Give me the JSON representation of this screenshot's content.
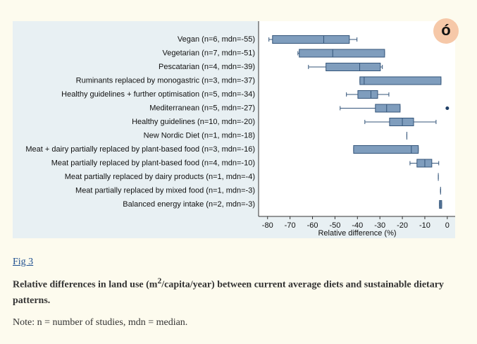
{
  "chart_data": {
    "type": "box",
    "categories": [
      "Vegan (n=6, mdn=-55)",
      "Vegetarian (n=7, mdn=-51)",
      "Pescatarian (n=4, mdn=-39)",
      "Ruminants replaced by monogastric (n=3, mdn=-37)",
      "Healthy guidelines + further optimisation (n=5, mdn=-34)",
      "Mediterranean (n=5, mdn=-27)",
      "Healthy guidelines (n=10, mdn=-20)",
      "New Nordic Diet (n=1, mdn=-18)",
      "Meat + dairy partially replaced by plant-based food (n=3, mdn=-16)",
      "Meat partially replaced by plant-based food (n=4, mdn=-10)",
      "Meat partially replaced by dairy products (n=1, mdn=-4)",
      "Meat partially replaced by mixed food (n=1, mdn=-3)",
      "Balanced energy intake (n=2, mdn=-3)"
    ],
    "boxes": [
      {
        "low": -79.4,
        "q1": -77.8,
        "median": -55,
        "q3": -43.6,
        "high": -40.2
      },
      {
        "low": -66.5,
        "q1": -65.9,
        "median": -51,
        "q3": -27.9,
        "high": -27.9
      },
      {
        "low": -61.8,
        "q1": -54,
        "median": -39,
        "q3": -29.8,
        "high": -28.9
      },
      {
        "low": -38.9,
        "q1": -38.9,
        "median": -37,
        "q3": -2.8,
        "high": -2.8
      },
      {
        "low": -44.9,
        "q1": -39.8,
        "median": -34,
        "q3": -31,
        "high": -26
      },
      {
        "low": -47.7,
        "q1": -32,
        "median": -27,
        "q3": -21,
        "high": -21
      },
      {
        "low": -36.7,
        "q1": -25.7,
        "median": -20,
        "q3": -15,
        "high": -5
      },
      {
        "low": -18,
        "q1": -18,
        "median": -18,
        "q3": -18,
        "high": -18
      },
      {
        "low": -41.7,
        "q1": -41.7,
        "median": -16,
        "q3": -12.9,
        "high": -12.9
      },
      {
        "low": -16.6,
        "q1": -13.5,
        "median": -10,
        "q3": -6.9,
        "high": -3.8
      },
      {
        "low": -4,
        "q1": -4,
        "median": -4,
        "q3": -4,
        "high": -4
      },
      {
        "low": -3,
        "q1": -3,
        "median": -3,
        "q3": -3,
        "high": -3
      },
      {
        "low": -3.5,
        "q1": -3.5,
        "median": -3,
        "q3": -2.5,
        "high": -2.5
      }
    ],
    "outliers": [
      [],
      [],
      [],
      [],
      [],
      [
        0
      ],
      [],
      [],
      [],
      [],
      [],
      [],
      []
    ],
    "color": "#7f9dbd",
    "edge_color": "#34557a",
    "xlabel": "Relative difference (%)",
    "xlim": [
      -84,
      3.5
    ],
    "xticks": [
      -80,
      -70,
      -60,
      -50,
      -40,
      -30,
      -20,
      -10,
      0
    ],
    "grid": false
  },
  "caption": {
    "link": "Fig 3",
    "title_parts": [
      "Relative differences in land use (m",
      "2",
      "/capita/year) between current average diets and sustainable dietary patterns."
    ],
    "note": "Note: n = number of studies, mdn = median."
  }
}
